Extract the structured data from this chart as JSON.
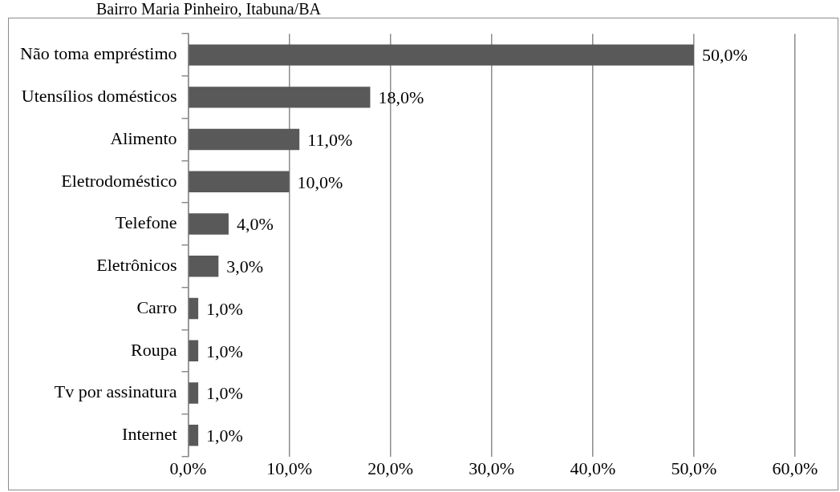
{
  "chart_data": {
    "type": "bar",
    "orientation": "horizontal",
    "title": "Bairro Maria Pinheiro, Itabuna/BA",
    "categories": [
      "Não toma empréstimo",
      "Utensílios domésticos",
      "Alimento",
      "Eletrodoméstico",
      "Telefone",
      "Eletrônicos",
      "Carro",
      "Roupa",
      "Tv por assinatura",
      "Internet"
    ],
    "values": [
      50,
      18,
      11,
      10,
      4,
      3,
      1,
      1,
      1,
      1
    ],
    "value_labels": [
      "50,0%",
      "18,0%",
      "11,0%",
      "10,0%",
      "4,0%",
      "3,0%",
      "1,0%",
      "1,0%",
      "1,0%",
      "1,0%"
    ],
    "color": "#595959",
    "xlim": [
      0,
      60
    ],
    "xticks": [
      {
        "value": 0,
        "label": "0,0%"
      },
      {
        "value": 10,
        "label": "10,0%"
      },
      {
        "value": 20,
        "label": "20,0%"
      },
      {
        "value": 30,
        "label": "30,0%"
      },
      {
        "value": 40,
        "label": "40,0%"
      },
      {
        "value": 50,
        "label": "50,0%"
      },
      {
        "value": 60,
        "label": "60,0%"
      }
    ],
    "grid": "x",
    "legend": false
  }
}
